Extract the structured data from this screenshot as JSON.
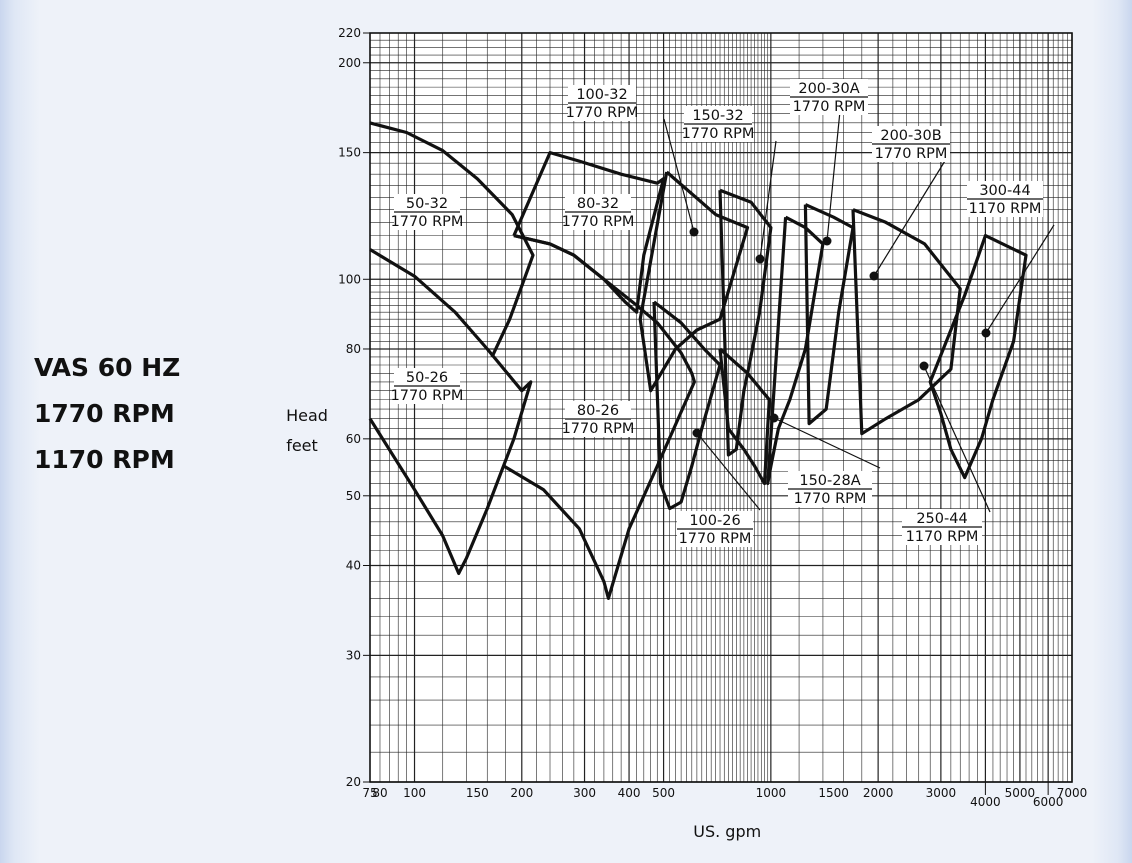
{
  "heading": {
    "line1": "VAS 60 HZ",
    "line2": "1770 RPM",
    "line3": "1170 RPM"
  },
  "chart_data": {
    "type": "line",
    "xscale": "log",
    "yscale": "log",
    "xlabel": "US. gpm",
    "ylabel": [
      "Head",
      "feet"
    ],
    "xlim": [
      75,
      7000
    ],
    "ylim": [
      20,
      220
    ],
    "grid": true,
    "x_tick_labels": [
      {
        "value": 75,
        "label": "75"
      },
      {
        "value": 80,
        "label": "80"
      },
      {
        "value": 100,
        "label": "100"
      },
      {
        "value": 150,
        "label": "150"
      },
      {
        "value": 200,
        "label": "200"
      },
      {
        "value": 300,
        "label": "300"
      },
      {
        "value": 400,
        "label": "400"
      },
      {
        "value": 500,
        "label": "500"
      },
      {
        "value": 1000,
        "label": "1000"
      },
      {
        "value": 1500,
        "label": "1500"
      },
      {
        "value": 2000,
        "label": "2000"
      },
      {
        "value": 3000,
        "label": "3000"
      },
      {
        "value": 4000,
        "label": "4000"
      },
      {
        "value": 5000,
        "label": "5000"
      },
      {
        "value": 6000,
        "label": "6000"
      },
      {
        "value": 7000,
        "label": "7000"
      }
    ],
    "y_tick_labels": [
      {
        "value": 20,
        "label": "20"
      },
      {
        "value": 30,
        "label": "30"
      },
      {
        "value": 40,
        "label": "40"
      },
      {
        "value": 50,
        "label": "50"
      },
      {
        "value": 60,
        "label": "60"
      },
      {
        "value": 80,
        "label": "80"
      },
      {
        "value": 100,
        "label": "100"
      },
      {
        "value": 150,
        "label": "150"
      },
      {
        "value": 200,
        "label": "200"
      },
      {
        "value": 220,
        "label": "220"
      }
    ],
    "series": [
      {
        "name": "50-32 1770 RPM",
        "points": [
          [
            75,
            165
          ],
          [
            95,
            160
          ],
          [
            120,
            151
          ],
          [
            150,
            138
          ],
          [
            188,
            123
          ],
          [
            215,
            108
          ],
          [
            185,
            88
          ],
          [
            165,
            78
          ]
        ],
        "open": true
      },
      {
        "name": "50-26 1770 RPM",
        "points": [
          [
            75,
            110
          ],
          [
            100,
            101
          ],
          [
            130,
            90
          ],
          [
            160,
            80
          ],
          [
            200,
            70
          ],
          [
            212,
            72
          ],
          [
            190,
            60
          ],
          [
            160,
            48
          ],
          [
            140,
            41
          ],
          [
            133,
            39
          ],
          [
            120,
            44
          ],
          [
            100,
            51
          ],
          [
            75,
            64
          ]
        ],
        "open": true
      },
      {
        "name": "80-32 1770 RPM",
        "points": [
          [
            190,
            115
          ],
          [
            240,
            150
          ],
          [
            290,
            146
          ],
          [
            380,
            140
          ],
          [
            480,
            136
          ],
          [
            500,
            138
          ],
          [
            440,
            108
          ],
          [
            420,
            90
          ],
          [
            390,
            93
          ],
          [
            340,
            100
          ],
          [
            280,
            108
          ],
          [
            240,
            112
          ],
          [
            190,
            115
          ]
        ]
      },
      {
        "name": "80-26 1770 RPM",
        "points": [
          [
            178,
            55
          ],
          [
            230,
            51
          ],
          [
            290,
            45
          ],
          [
            340,
            38
          ],
          [
            350,
            36
          ],
          [
            400,
            45
          ],
          [
            480,
            55
          ],
          [
            610,
            72
          ],
          [
            600,
            74
          ],
          [
            560,
            79
          ],
          [
            480,
            87
          ],
          [
            420,
            92
          ],
          [
            340,
            100
          ],
          [
            280,
            108
          ],
          [
            240,
            112
          ],
          [
            190,
            115
          ]
        ],
        "open": true
      },
      {
        "name": "100-32 1770 RPM",
        "points": [
          [
            510,
            141
          ],
          [
            700,
            123
          ],
          [
            860,
            118
          ],
          [
            720,
            88
          ],
          [
            620,
            85
          ],
          [
            540,
            80
          ],
          [
            460,
            70
          ],
          [
            430,
            88
          ],
          [
            510,
            141
          ]
        ]
      },
      {
        "name": "100-26 1770 RPM",
        "points": [
          [
            470,
            93
          ],
          [
            560,
            87
          ],
          [
            650,
            80
          ],
          [
            720,
            76
          ],
          [
            640,
            62
          ],
          [
            600,
            55
          ],
          [
            560,
            49
          ],
          [
            520,
            48
          ],
          [
            490,
            52
          ],
          [
            470,
            93
          ]
        ]
      },
      {
        "name": "150-32 1770 RPM",
        "points": [
          [
            720,
            133
          ],
          [
            880,
            128
          ],
          [
            1000,
            118
          ],
          [
            930,
            90
          ],
          [
            870,
            76
          ],
          [
            840,
            70
          ],
          [
            800,
            58
          ],
          [
            760,
            57
          ],
          [
            720,
            133
          ]
        ]
      },
      {
        "name": "150-28A 1770 RPM",
        "points": [
          [
            720,
            80
          ],
          [
            860,
            74
          ],
          [
            990,
            68
          ],
          [
            960,
            52
          ],
          [
            900,
            55
          ],
          [
            840,
            58
          ],
          [
            760,
            62
          ],
          [
            720,
            80
          ]
        ]
      },
      {
        "name": "200-30A 1770 RPM",
        "points": [
          [
            1250,
            127
          ],
          [
            1500,
            122
          ],
          [
            1700,
            118
          ],
          [
            1550,
            90
          ],
          [
            1430,
            66
          ],
          [
            1280,
            63
          ],
          [
            1250,
            127
          ]
        ]
      },
      {
        "name": "200-30B 1770 RPM",
        "points": [
          [
            1100,
            122
          ],
          [
            1250,
            118
          ],
          [
            1400,
            112
          ],
          [
            1250,
            80
          ],
          [
            1130,
            68
          ],
          [
            1050,
            62
          ],
          [
            1000,
            55
          ],
          [
            980,
            52
          ],
          [
            1100,
            122
          ]
        ]
      },
      {
        "name": "250-44 1170 RPM",
        "points": [
          [
            1700,
            125
          ],
          [
            2100,
            120
          ],
          [
            2700,
            112
          ],
          [
            3400,
            97
          ],
          [
            3200,
            75
          ],
          [
            2600,
            68
          ],
          [
            2100,
            64
          ],
          [
            1800,
            61
          ],
          [
            1700,
            125
          ]
        ]
      },
      {
        "name": "300-44 1170 RPM",
        "points": [
          [
            3500,
            95
          ],
          [
            4000,
            115
          ],
          [
            5200,
            108
          ],
          [
            4800,
            82
          ],
          [
            4200,
            68
          ],
          [
            3900,
            60
          ],
          [
            3500,
            53
          ],
          [
            3200,
            58
          ],
          [
            3000,
            65
          ],
          [
            2800,
            72
          ],
          [
            3500,
            95
          ]
        ]
      }
    ],
    "annotations": [
      {
        "label": "50-32",
        "label2": "1770 RPM"
      },
      {
        "label": "50-26",
        "label2": "1770 RPM"
      },
      {
        "label": "80-32",
        "label2": "1770 RPM"
      },
      {
        "label": "80-26",
        "label2": "1770 RPM"
      },
      {
        "label": "100-32",
        "label2": "1770 RPM"
      },
      {
        "label": "150-32",
        "label2": "1770 RPM"
      },
      {
        "label": "200-30A",
        "label2": "1770 RPM"
      },
      {
        "label": "200-30B",
        "label2": "1770 RPM"
      },
      {
        "label": "300-44",
        "label2": "1170 RPM"
      },
      {
        "label": "100-26",
        "label2": "1770 RPM"
      },
      {
        "label": "150-28A",
        "label2": "1770 RPM"
      },
      {
        "label": "250-44",
        "label2": "1170 RPM"
      }
    ]
  }
}
